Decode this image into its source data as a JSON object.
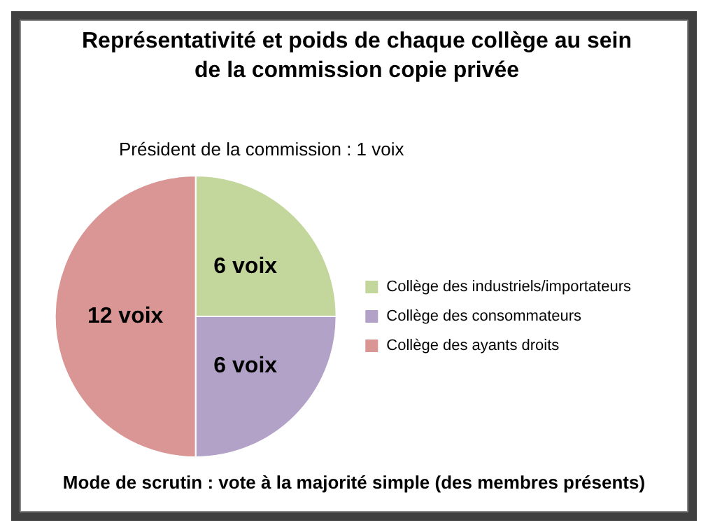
{
  "chart_data": {
    "type": "pie",
    "title": "Représentativité et poids de chaque collège au sein de la commission copie privée",
    "categories": [
      "Collège des industriels/importateurs",
      "Collège des consommateurs",
      "Collège des ayants droits"
    ],
    "values": [
      6,
      6,
      12
    ],
    "colors": [
      "#c3d69b",
      "#b3a2c7",
      "#d99694"
    ],
    "value_labels": [
      "6 voix",
      "6 voix",
      "12 voix"
    ],
    "legend": "right",
    "annotations": [
      "Président de la commission : 1 voix",
      "Mode de scrutin : vote à la majorité simple (des membres présents)"
    ]
  }
}
